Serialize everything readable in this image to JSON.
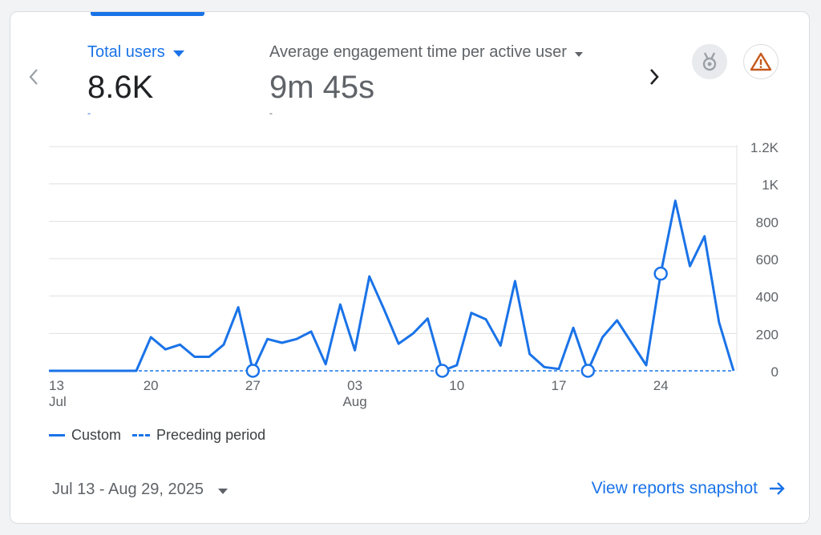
{
  "metrics": [
    {
      "label": "Total users",
      "value": "8.6K",
      "sub": "-"
    },
    {
      "label": "Average engagement time per active user",
      "value": "9m 45s",
      "sub": "-"
    }
  ],
  "icons": {
    "prev": "chevron-left-icon",
    "next": "chevron-right-icon",
    "insights": "insights-badge-icon",
    "warning": "warning-triangle-icon"
  },
  "colors": {
    "accent": "#1a73e8",
    "warning": "#c5581c",
    "grid": "#e0e0e0",
    "muted": "#5f6368"
  },
  "chart_data": {
    "type": "line",
    "x": [
      "Jul 13",
      "Jul 14",
      "Jul 15",
      "Jul 16",
      "Jul 17",
      "Jul 18",
      "Jul 19",
      "Jul 20",
      "Jul 21",
      "Jul 22",
      "Jul 23",
      "Jul 24",
      "Jul 25",
      "Jul 26",
      "Jul 27",
      "Jul 28",
      "Jul 29",
      "Jul 30",
      "Jul 31",
      "Aug 01",
      "Aug 02",
      "Aug 03",
      "Aug 04",
      "Aug 05",
      "Aug 06",
      "Aug 07",
      "Aug 08",
      "Aug 09",
      "Aug 10",
      "Aug 11",
      "Aug 12",
      "Aug 13",
      "Aug 14",
      "Aug 15",
      "Aug 16",
      "Aug 17",
      "Aug 18",
      "Aug 19",
      "Aug 20",
      "Aug 21",
      "Aug 22",
      "Aug 23",
      "Aug 24",
      "Aug 25",
      "Aug 26",
      "Aug 27",
      "Aug 28",
      "Aug 29"
    ],
    "x_tick_labels": [
      {
        "index": 0,
        "label": "13",
        "sublabel": "Jul"
      },
      {
        "index": 7,
        "label": "20",
        "sublabel": ""
      },
      {
        "index": 14,
        "label": "27",
        "sublabel": ""
      },
      {
        "index": 21,
        "label": "03",
        "sublabel": "Aug"
      },
      {
        "index": 28,
        "label": "10",
        "sublabel": ""
      },
      {
        "index": 35,
        "label": "17",
        "sublabel": ""
      },
      {
        "index": 42,
        "label": "24",
        "sublabel": ""
      }
    ],
    "series": [
      {
        "name": "Custom",
        "style": "solid",
        "values": [
          0,
          0,
          0,
          0,
          0,
          0,
          0,
          180,
          115,
          140,
          75,
          75,
          140,
          340,
          0,
          170,
          150,
          170,
          210,
          35,
          355,
          110,
          505,
          330,
          145,
          200,
          280,
          0,
          30,
          310,
          275,
          135,
          480,
          90,
          20,
          10,
          230,
          0,
          180,
          270,
          150,
          30,
          520,
          910,
          560,
          720,
          260,
          0
        ]
      },
      {
        "name": "Preceding period",
        "style": "dashed",
        "values": [
          0,
          0,
          0,
          0,
          0,
          0,
          0,
          0,
          0,
          0,
          0,
          0,
          0,
          0,
          0,
          0,
          0,
          0,
          0,
          0,
          0,
          0,
          0,
          0,
          0,
          0,
          0,
          0,
          0,
          0,
          0,
          0,
          0,
          0,
          0,
          0,
          0,
          0,
          0,
          0,
          0,
          0,
          0,
          0,
          0,
          0,
          0,
          0
        ]
      }
    ],
    "annotation_markers": [
      14,
      27,
      37,
      42
    ],
    "y_ticks": [
      0,
      200,
      400,
      600,
      800,
      1000,
      1200
    ],
    "y_tick_labels": [
      "0",
      "200",
      "400",
      "600",
      "800",
      "1K",
      "1.2K"
    ],
    "ylim": [
      0,
      1200
    ],
    "y_axis_side": "right",
    "grid": true,
    "legend_position": "bottom-left"
  },
  "footer": {
    "date_range": "Jul 13 - Aug 29, 2025",
    "link_label": "View reports snapshot"
  }
}
